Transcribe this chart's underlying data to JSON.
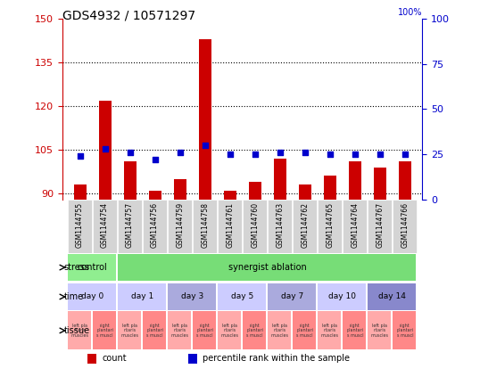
{
  "title": "GDS4932 / 10571297",
  "samples": [
    "GSM1144755",
    "GSM1144754",
    "GSM1144757",
    "GSM1144756",
    "GSM1144759",
    "GSM1144758",
    "GSM1144761",
    "GSM1144760",
    "GSM1144763",
    "GSM1144762",
    "GSM1144765",
    "GSM1144764",
    "GSM1144767",
    "GSM1144766"
  ],
  "counts": [
    93,
    122,
    101,
    91,
    95,
    143,
    91,
    94,
    102,
    93,
    96,
    101,
    99,
    101
  ],
  "percentiles": [
    24,
    28,
    26,
    22,
    26,
    30,
    25,
    25,
    26,
    26,
    25,
    25,
    25,
    25
  ],
  "ylim_left": [
    88,
    150
  ],
  "ylim_right": [
    0,
    100
  ],
  "yticks_left": [
    90,
    105,
    120,
    135,
    150
  ],
  "yticks_right": [
    0,
    25,
    50,
    75,
    100
  ],
  "bar_color": "#cc0000",
  "dot_color": "#0000cc",
  "background_color": "#ffffff",
  "plot_bg_color": "#ffffff",
  "stress_row": {
    "label": "stress",
    "groups": [
      {
        "text": "control",
        "span": 2,
        "color": "#90ee90"
      },
      {
        "text": "synergist ablation",
        "span": 12,
        "color": "#90c090"
      }
    ]
  },
  "time_row": {
    "label": "time",
    "groups": [
      {
        "text": "day 0",
        "span": 2,
        "color": "#ccccff"
      },
      {
        "text": "day 1",
        "span": 2,
        "color": "#ccccff"
      },
      {
        "text": "day 3",
        "span": 2,
        "color": "#aaaadd"
      },
      {
        "text": "day 5",
        "span": 2,
        "color": "#ccccff"
      },
      {
        "text": "day 7",
        "span": 2,
        "color": "#aaaadd"
      },
      {
        "text": "day 10",
        "span": 2,
        "color": "#ccccff"
      },
      {
        "text": "day 14",
        "span": 2,
        "color": "#8888cc"
      }
    ]
  },
  "tissue_row": {
    "label": "tissue",
    "left_label": "left pla\nntaris\nmuscles",
    "right_label": "right\nplantari\ns muscl",
    "left_color": "#ffaaaa",
    "right_color": "#ff8888"
  },
  "legend_count_color": "#cc0000",
  "legend_dot_color": "#0000cc",
  "dotted_line_color": "#000000",
  "axis_label_color_left": "#cc0000",
  "axis_label_color_right": "#0000cc"
}
